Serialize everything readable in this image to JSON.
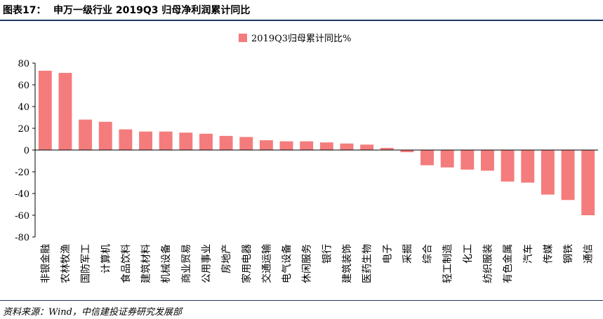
{
  "header": {
    "figure_label": "图表17：",
    "title": "申万一级行业 2019Q3 归母净利润累计同比"
  },
  "chart_data": {
    "type": "bar",
    "categories": [
      "非银金融",
      "农林牧渔",
      "国防军工",
      "计算机",
      "食品饮料",
      "建筑材料",
      "机械设备",
      "商业贸易",
      "公用事业",
      "房地产",
      "家用电器",
      "交通运输",
      "电气设备",
      "休闲服务",
      "银行",
      "建筑装饰",
      "医药生物",
      "电子",
      "采掘",
      "综合",
      "轻工制造",
      "化工",
      "纺织服装",
      "有色金属",
      "汽车",
      "传媒",
      "钢铁",
      "通信"
    ],
    "series": [
      {
        "name": "2019Q3归母累计同比%",
        "values": [
          73,
          71,
          28,
          26,
          19,
          17,
          17,
          16,
          15,
          13,
          12,
          9,
          8,
          8,
          7,
          6,
          5,
          2,
          -2,
          -14,
          -16,
          -18,
          -19,
          -29,
          -30,
          -41,
          -46,
          -60
        ]
      }
    ],
    "yticks": [
      "80",
      "60",
      "40",
      "20",
      "0",
      "-20",
      "-40",
      "-60",
      "-80"
    ],
    "ylim": [
      -80,
      80
    ],
    "grid": false,
    "legend_position": "top-center",
    "bar_color": "#f47c7c"
  },
  "footer": {
    "source": "资料来源：Wind，中信建投证券研究发展部"
  }
}
